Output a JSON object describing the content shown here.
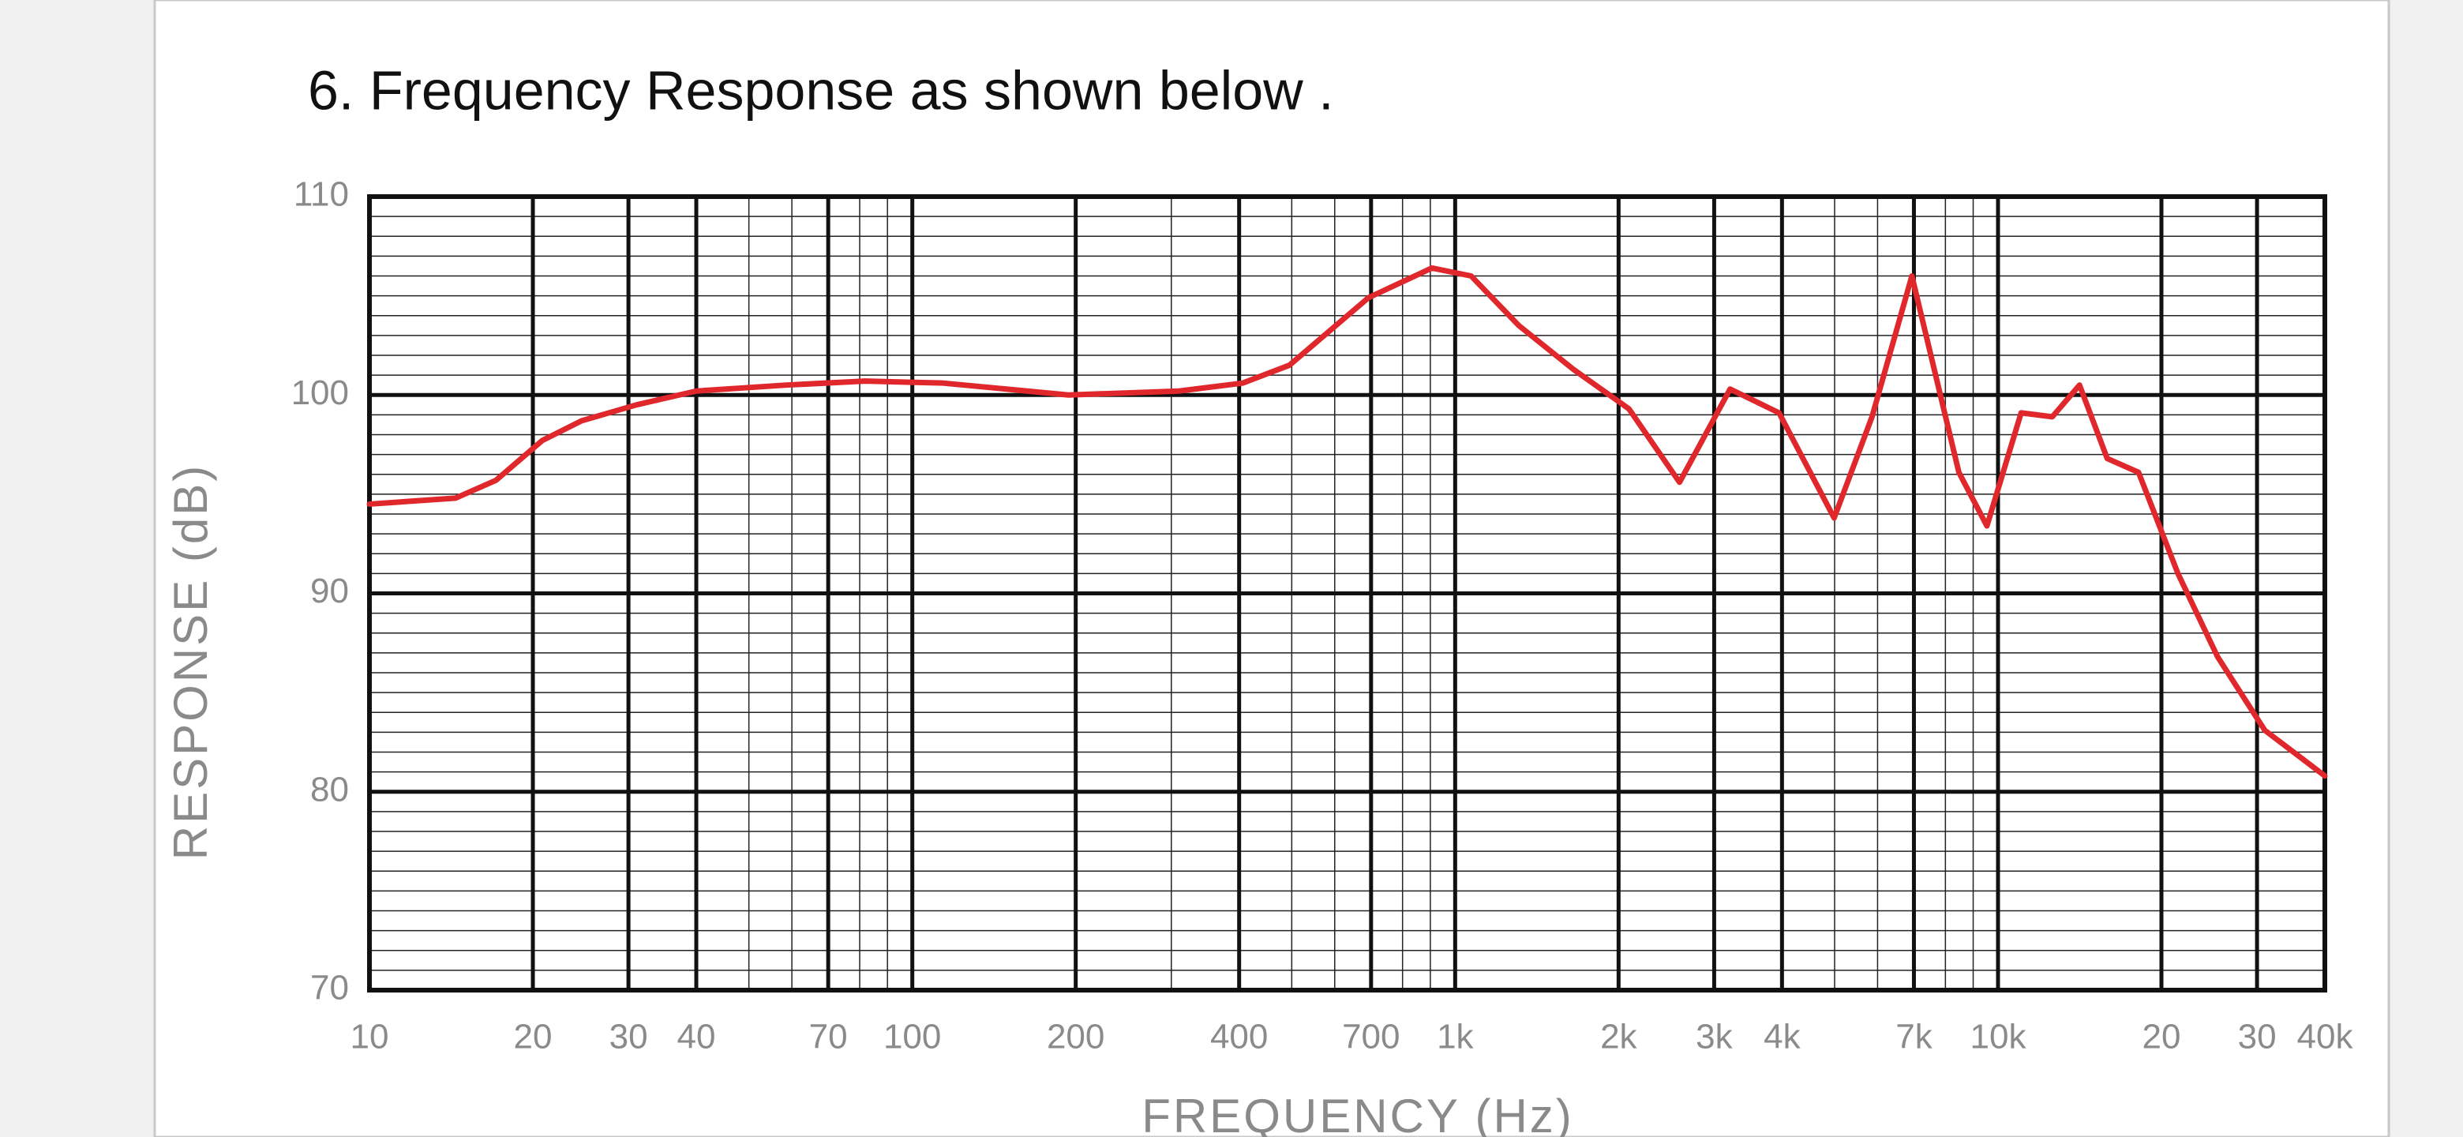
{
  "chart_data": {
    "type": "line",
    "title": "6. Frequency Response as shown below .",
    "x_label": "FREQUENCY (Hz)",
    "y_label": "RESPONSE (dB)",
    "x_log": true,
    "grid": true,
    "xlim": [
      10,
      40000
    ],
    "ylim": [
      70,
      110
    ],
    "yticks": [
      70,
      80,
      90,
      100,
      110
    ],
    "xticks": [
      10,
      20,
      30,
      40,
      70,
      100,
      200,
      400,
      700,
      {
        "value": 1000,
        "label": "1k"
      },
      {
        "value": 2000,
        "label": "2k"
      },
      {
        "value": 3000,
        "label": "3k"
      },
      {
        "value": 4000,
        "label": "4k"
      },
      {
        "value": 7000,
        "label": "7k"
      },
      {
        "value": 10000,
        "label": "10k"
      },
      {
        "value": 20000,
        "label": "20"
      },
      {
        "value": 30000,
        "label": "30"
      },
      {
        "value": 40000,
        "label": "40k"
      }
    ],
    "x": [
      10,
      14.4,
      17.1,
      20.8,
      24.6,
      31,
      40,
      58.6,
      81.9,
      114,
      194,
      310,
      406,
      495,
      692,
      906,
      1070,
      1310,
      1650,
      2090,
      2590,
      3210,
      3950,
      4990,
      5860,
      6940,
      8470,
      9540,
      11030,
      12590,
      14130,
      15890,
      18150,
      21450,
      25380,
      31000,
      40000
    ],
    "series": [
      {
        "color": "#e0282c",
        "values": [
          94.5,
          94.8,
          95.7,
          97.7,
          98.7,
          99.5,
          100.2,
          100.5,
          100.7,
          100.6,
          100,
          100.2,
          100.6,
          101.5,
          104.9,
          106.4,
          106,
          103.5,
          101.3,
          99.3,
          95.6,
          100.3,
          99.1,
          93.8,
          98.9,
          106,
          96.1,
          93.4,
          99.1,
          98.9,
          100.5,
          96.8,
          96.1,
          91,
          86.8,
          83.1,
          80.8
        ]
      }
    ]
  }
}
